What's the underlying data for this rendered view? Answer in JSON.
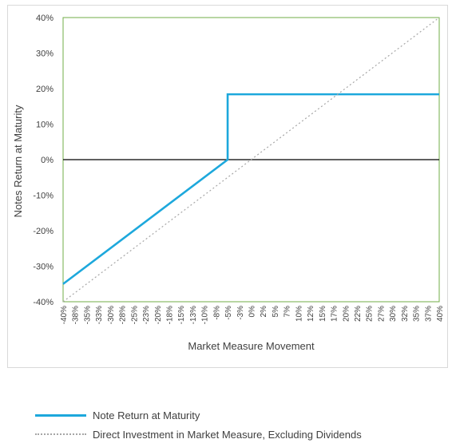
{
  "chart_data": {
    "type": "line",
    "title": "",
    "xlabel": "Market Measure Movement",
    "ylabel": "Notes Return at Maturity",
    "x_tick_labels": [
      "-40%",
      "-38%",
      "-35%",
      "-33%",
      "-30%",
      "-28%",
      "-25%",
      "-23%",
      "-20%",
      "-18%",
      "-15%",
      "-13%",
      "-10%",
      "-8%",
      "-5%",
      "-3%",
      "0%",
      "2%",
      "5%",
      "7%",
      "10%",
      "12%",
      "15%",
      "17%",
      "20%",
      "22%",
      "25%",
      "27%",
      "30%",
      "32%",
      "35%",
      "37%",
      "40%"
    ],
    "y_tick_labels": [
      "-40%",
      "-30%",
      "-20%",
      "-10%",
      "0%",
      "10%",
      "20%",
      "30%",
      "40%"
    ],
    "xlim": [
      -40,
      40
    ],
    "ylim": [
      -40,
      40
    ],
    "grid": false,
    "legend_position": "bottom",
    "series": [
      {
        "name": "Note Return at Maturity",
        "color": "#1da8dc",
        "style": "solid",
        "points": [
          [
            -40,
            -35
          ],
          [
            -5,
            0
          ],
          [
            -5,
            18.4
          ],
          [
            40,
            18.4
          ]
        ]
      },
      {
        "name": "Direct Investment in Market Measure, Excluding Dividends",
        "color": "#a6a6a6",
        "style": "dotted",
        "points": [
          [
            -40,
            -40
          ],
          [
            40,
            40
          ]
        ]
      }
    ]
  }
}
